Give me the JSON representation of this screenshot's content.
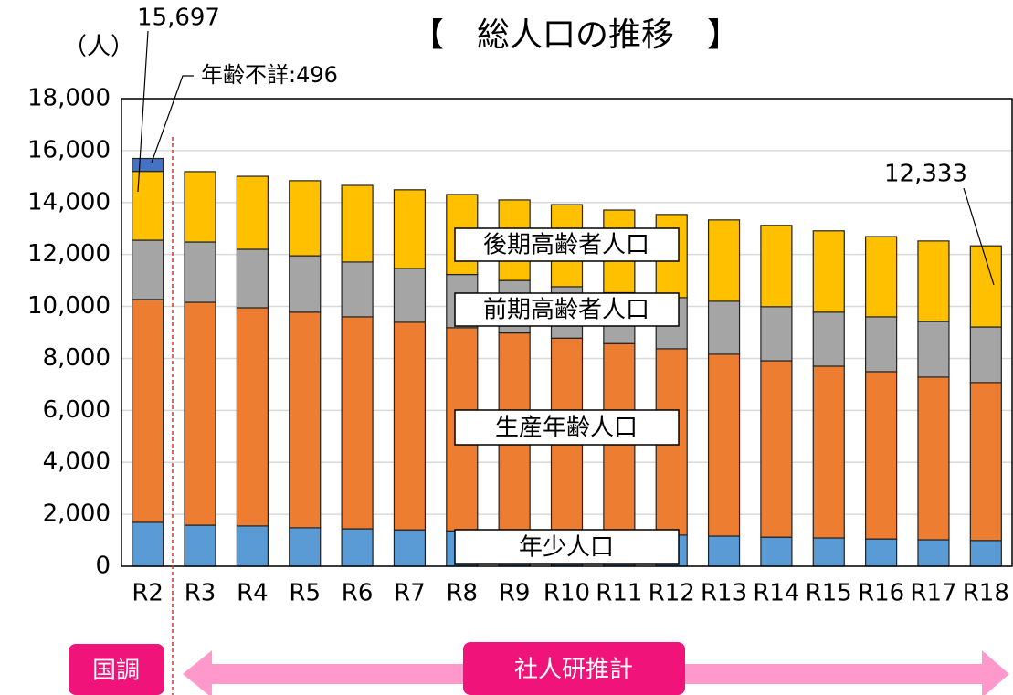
{
  "chart_data": {
    "type": "stacked_bar",
    "title": "【　総人口の推移　】",
    "y_label": "（人）",
    "categories": [
      "R2",
      "R3",
      "R4",
      "R5",
      "R6",
      "R7",
      "R8",
      "R9",
      "R10",
      "R11",
      "R12",
      "R13",
      "R14",
      "R15",
      "R16",
      "R17",
      "R18"
    ],
    "series": [
      {
        "name": "年少人口",
        "color": "#5b9bd5",
        "values": [
          1690,
          1580,
          1550,
          1480,
          1440,
          1400,
          1360,
          1320,
          1280,
          1240,
          1200,
          1160,
          1120,
          1090,
          1050,
          1020,
          990
        ]
      },
      {
        "name": "生産年齢人口",
        "color": "#ed7d31",
        "values": [
          8580,
          8580,
          8400,
          8300,
          8160,
          7990,
          7820,
          7660,
          7500,
          7330,
          7170,
          7000,
          6790,
          6610,
          6440,
          6260,
          6080
        ]
      },
      {
        "name": "前期高齢者人口",
        "color": "#a5a5a5",
        "values": [
          2280,
          2320,
          2250,
          2170,
          2110,
          2070,
          2050,
          2020,
          1980,
          1960,
          1970,
          2040,
          2080,
          2080,
          2110,
          2140,
          2140
        ]
      },
      {
        "name": "後期高齢者人口",
        "color": "#ffc000",
        "values": [
          2651,
          2710,
          2810,
          2890,
          2950,
          3030,
          3080,
          3100,
          3160,
          3180,
          3200,
          3130,
          3130,
          3130,
          3090,
          3100,
          3123
        ]
      },
      {
        "name": "年齢不詳",
        "color": "#4472c4",
        "values": [
          496,
          null,
          null,
          null,
          null,
          null,
          null,
          null,
          null,
          null,
          null,
          null,
          null,
          null,
          null,
          null,
          null
        ]
      }
    ],
    "ylim": [
      0,
      18000
    ],
    "yticks": [
      0,
      {
        "value": 2000,
        "label": "2,000"
      },
      {
        "value": 4000,
        "label": "4,000"
      },
      {
        "value": 6000,
        "label": "6,000"
      },
      {
        "value": 8000,
        "label": "8,000"
      },
      {
        "value": 10000,
        "label": "10,000"
      },
      {
        "value": 12000,
        "label": "12,000"
      },
      {
        "value": 14000,
        "label": "14,000"
      },
      {
        "value": 16000,
        "label": "16,000"
      },
      {
        "value": 18000,
        "label": "18,000"
      }
    ],
    "grid": true,
    "annotations": [
      "15,697",
      "年齢不詳:496",
      "12,333"
    ],
    "footer": {
      "census": "国調",
      "projection": "社人研推計"
    }
  }
}
